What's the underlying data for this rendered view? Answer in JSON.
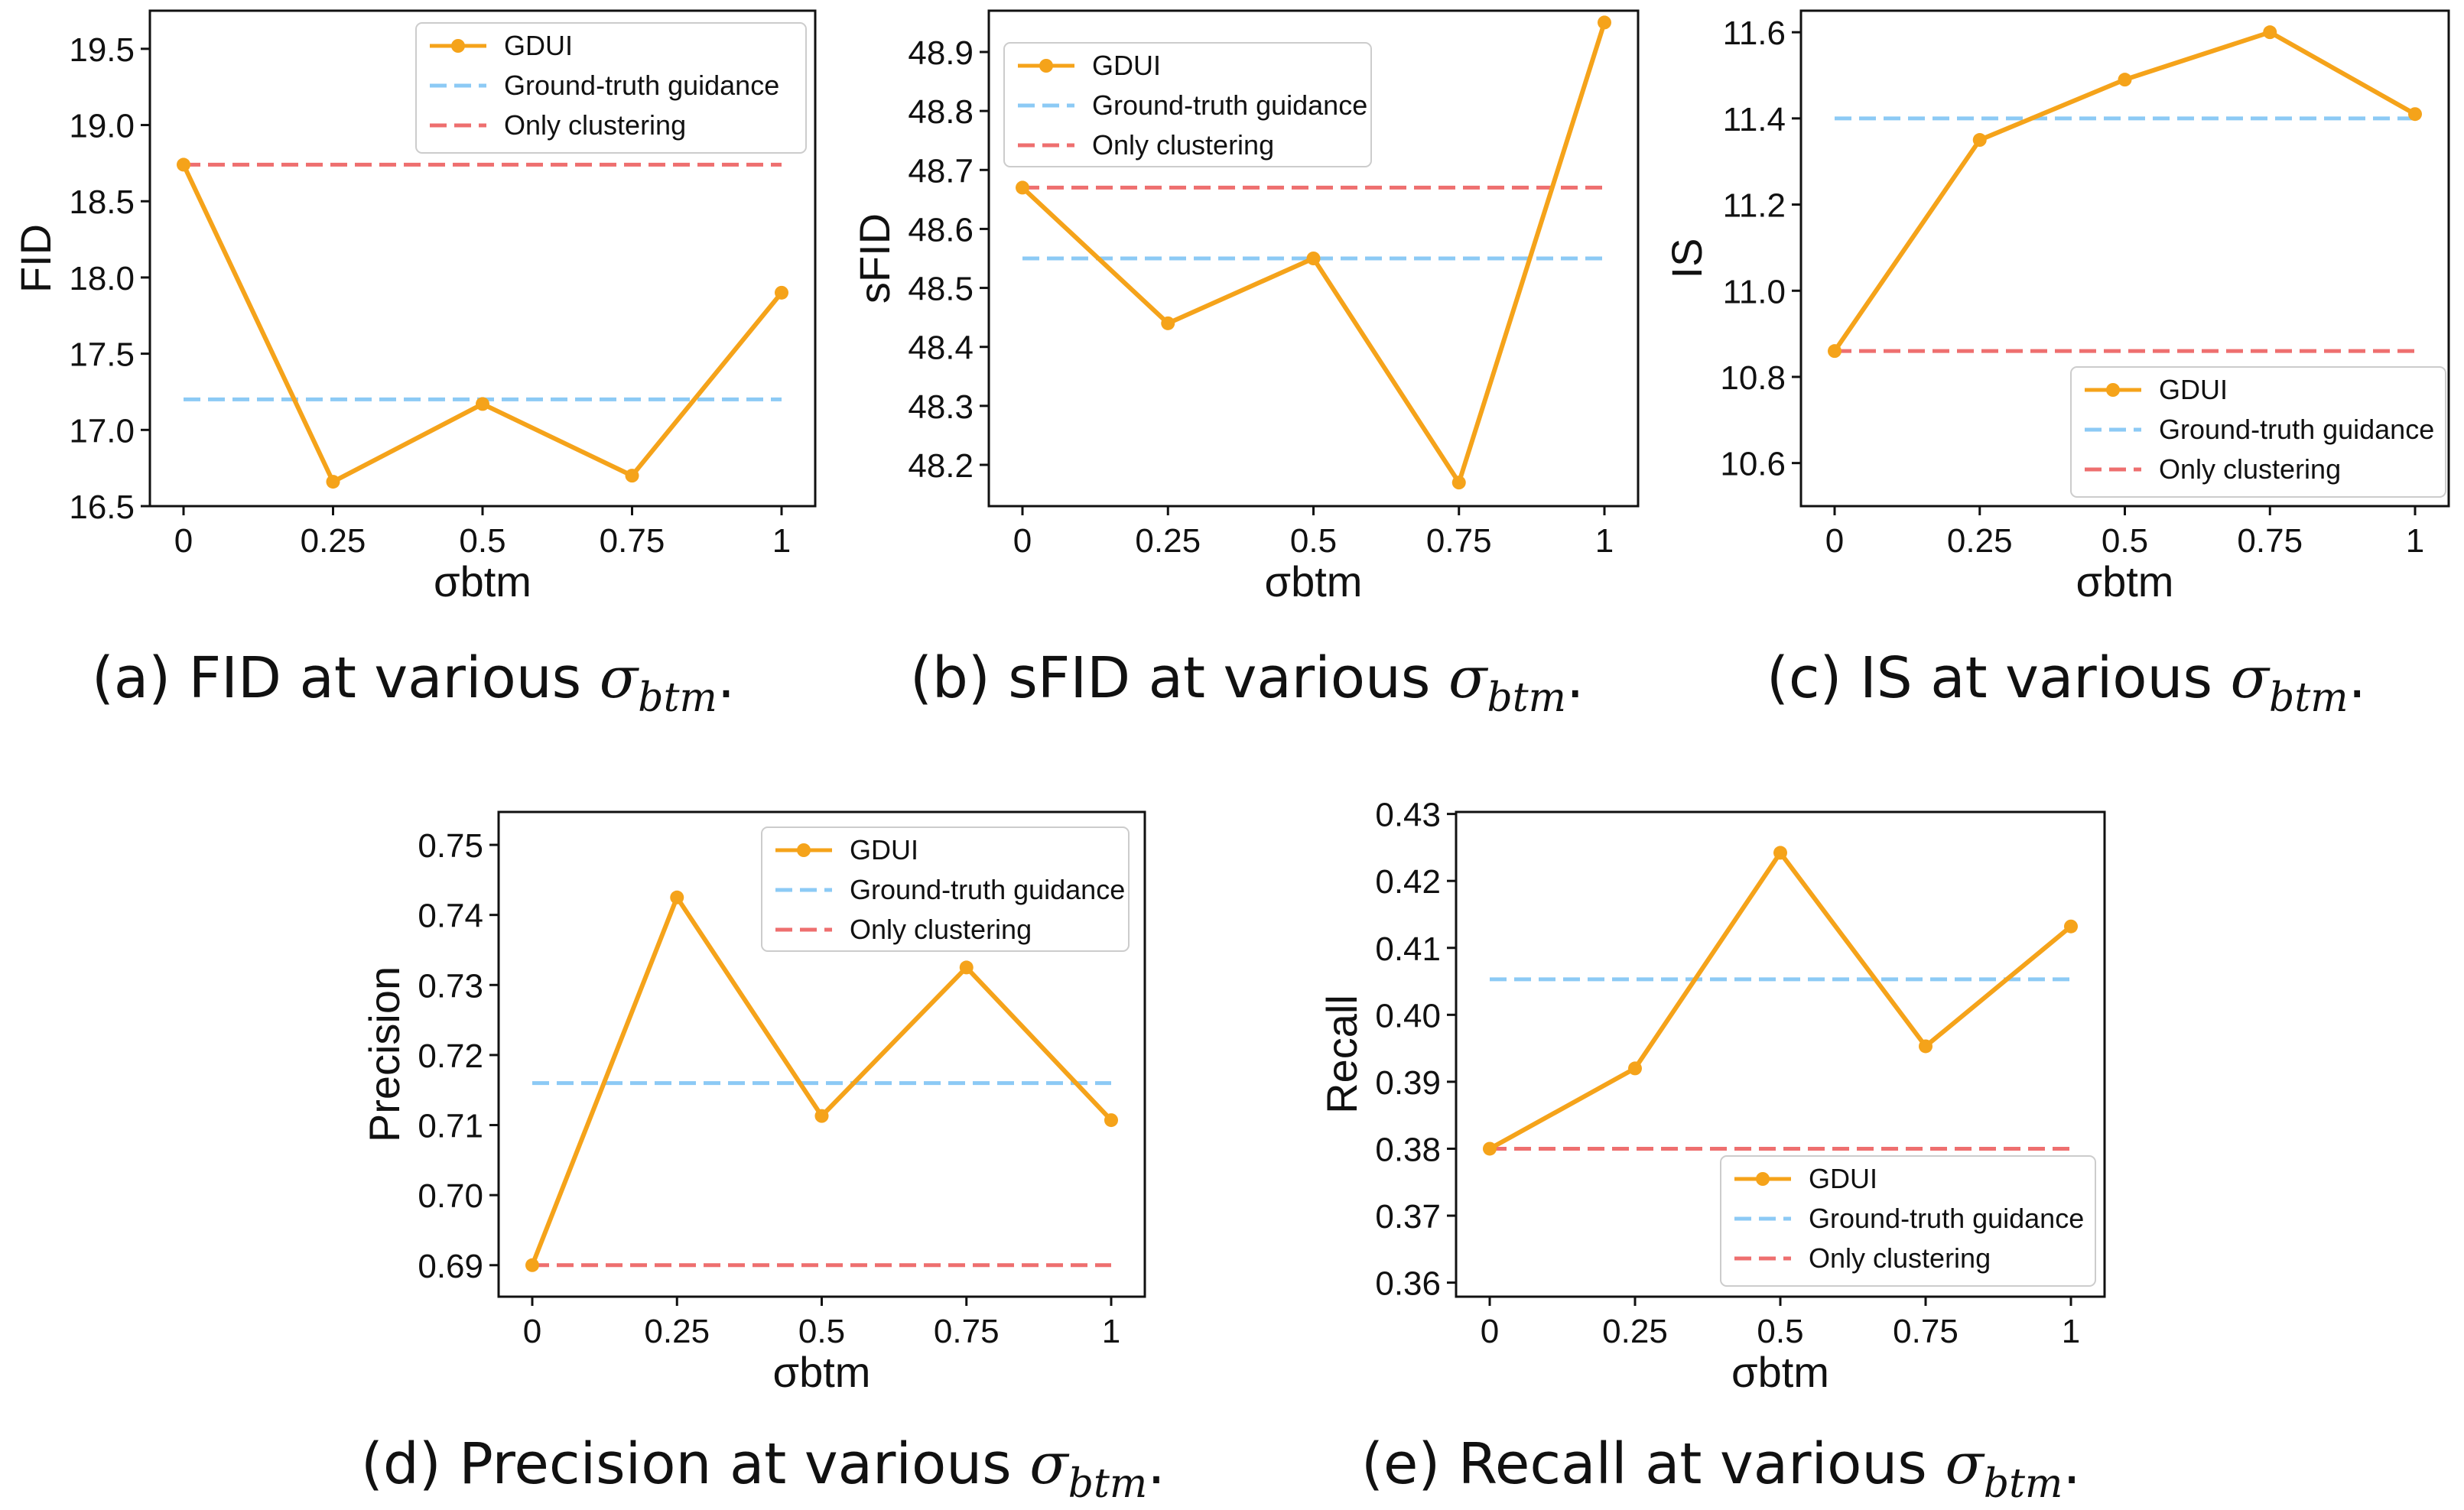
{
  "colors": {
    "series": "#f5a31a",
    "gt": "#8ccaf5",
    "clust": "#ee6f6f",
    "axes": "#111111",
    "legend_border": "#cccccc"
  },
  "legend_labels": {
    "series": "GDUI",
    "gt": "Ground-truth guidance",
    "clust": "Only clustering"
  },
  "captions": [
    {
      "prefix": "(a) FID at various ",
      "symbol": "σ",
      "sub": "btm",
      "suffix": "."
    },
    {
      "prefix": "(b) sFID at various ",
      "symbol": "σ",
      "sub": "btm",
      "suffix": "."
    },
    {
      "prefix": "(c) IS at various ",
      "symbol": "σ",
      "sub": "btm",
      "suffix": "."
    },
    {
      "prefix": "(d) Precision at various ",
      "symbol": "σ",
      "sub": "btm",
      "suffix": "."
    },
    {
      "prefix": "(e) Recall at various ",
      "symbol": "σ",
      "sub": "btm",
      "suffix": "."
    }
  ],
  "chart_data": [
    {
      "id": "fid",
      "type": "line",
      "xlabel": "σbtm",
      "ylabel": "FID",
      "x": [
        0,
        0.25,
        0.5,
        0.75,
        1
      ],
      "x_tick_labels": [
        "0",
        "0.25",
        "0.5",
        "0.75",
        "1"
      ],
      "ylim": [
        16.5,
        19.75
      ],
      "y_ticks": [
        16.5,
        17.0,
        17.5,
        18.0,
        18.5,
        19.0,
        19.5
      ],
      "y_tick_labels": [
        "16.5",
        "17.0",
        "17.5",
        "18.0",
        "18.5",
        "19.0",
        "19.5"
      ],
      "series": [
        {
          "name": "GDUI",
          "values": [
            18.74,
            16.66,
            17.17,
            16.7,
            17.9
          ]
        }
      ],
      "hlines": [
        {
          "name": "Ground-truth guidance",
          "value": 17.2
        },
        {
          "name": "Only clustering",
          "value": 18.74
        }
      ],
      "legend": "top-right"
    },
    {
      "id": "sfid",
      "type": "line",
      "xlabel": "σbtm",
      "ylabel": "sFID",
      "x": [
        0,
        0.25,
        0.5,
        0.75,
        1
      ],
      "x_tick_labels": [
        "0",
        "0.25",
        "0.5",
        "0.75",
        "1"
      ],
      "ylim": [
        48.13,
        48.97
      ],
      "y_ticks": [
        48.2,
        48.3,
        48.4,
        48.5,
        48.6,
        48.7,
        48.8,
        48.9
      ],
      "y_tick_labels": [
        "48.2",
        "48.3",
        "48.4",
        "48.5",
        "48.6",
        "48.7",
        "48.8",
        "48.9"
      ],
      "series": [
        {
          "name": "GDUI",
          "values": [
            48.67,
            48.44,
            48.55,
            48.17,
            48.95
          ]
        }
      ],
      "hlines": [
        {
          "name": "Ground-truth guidance",
          "value": 48.55
        },
        {
          "name": "Only clustering",
          "value": 48.67
        }
      ],
      "legend": "top-left"
    },
    {
      "id": "is",
      "type": "line",
      "xlabel": "σbtm",
      "ylabel": "IS",
      "x": [
        0,
        0.25,
        0.5,
        0.75,
        1
      ],
      "x_tick_labels": [
        "0",
        "0.25",
        "0.5",
        "0.75",
        "1"
      ],
      "ylim": [
        10.5,
        11.65
      ],
      "y_ticks": [
        10.6,
        10.8,
        11.0,
        11.2,
        11.4,
        11.6
      ],
      "y_tick_labels": [
        "10.6",
        "10.8",
        "11.0",
        "11.2",
        "11.4",
        "11.6"
      ],
      "series": [
        {
          "name": "GDUI",
          "values": [
            10.86,
            11.35,
            11.49,
            11.6,
            11.41
          ]
        }
      ],
      "hlines": [
        {
          "name": "Ground-truth guidance",
          "value": 11.4
        },
        {
          "name": "Only clustering",
          "value": 10.86
        }
      ],
      "legend": "bottom-right"
    },
    {
      "id": "precision",
      "type": "line",
      "xlabel": "σbtm",
      "ylabel": "Precision",
      "x": [
        0,
        0.25,
        0.5,
        0.75,
        1
      ],
      "x_tick_labels": [
        "0",
        "0.25",
        "0.5",
        "0.75",
        "1"
      ],
      "ylim": [
        0.6855,
        0.7547
      ],
      "y_ticks": [
        0.69,
        0.7,
        0.71,
        0.72,
        0.73,
        0.74,
        0.75
      ],
      "y_tick_labels": [
        "0.69",
        "0.70",
        "0.71",
        "0.72",
        "0.73",
        "0.74",
        "0.75"
      ],
      "series": [
        {
          "name": "GDUI",
          "values": [
            0.69,
            0.7425,
            0.7113,
            0.7325,
            0.7107
          ]
        }
      ],
      "hlines": [
        {
          "name": "Ground-truth guidance",
          "value": 0.716
        },
        {
          "name": "Only clustering",
          "value": 0.69
        }
      ],
      "legend": "top-right"
    },
    {
      "id": "recall",
      "type": "line",
      "xlabel": "σbtm",
      "ylabel": "Recall",
      "x": [
        0,
        0.25,
        0.5,
        0.75,
        1
      ],
      "x_tick_labels": [
        "0",
        "0.25",
        "0.5",
        "0.75",
        "1"
      ],
      "ylim": [
        0.3579,
        0.4303
      ],
      "y_ticks": [
        0.36,
        0.37,
        0.38,
        0.39,
        0.4,
        0.41,
        0.42,
        0.43
      ],
      "y_tick_labels": [
        "0.36",
        "0.37",
        "0.38",
        "0.39",
        "0.40",
        "0.41",
        "0.42",
        "0.43"
      ],
      "series": [
        {
          "name": "GDUI",
          "values": [
            0.38,
            0.392,
            0.4242,
            0.3953,
            0.4132
          ]
        }
      ],
      "hlines": [
        {
          "name": "Ground-truth guidance",
          "value": 0.4053
        },
        {
          "name": "Only clustering",
          "value": 0.38
        }
      ],
      "legend": "bottom-right"
    }
  ]
}
